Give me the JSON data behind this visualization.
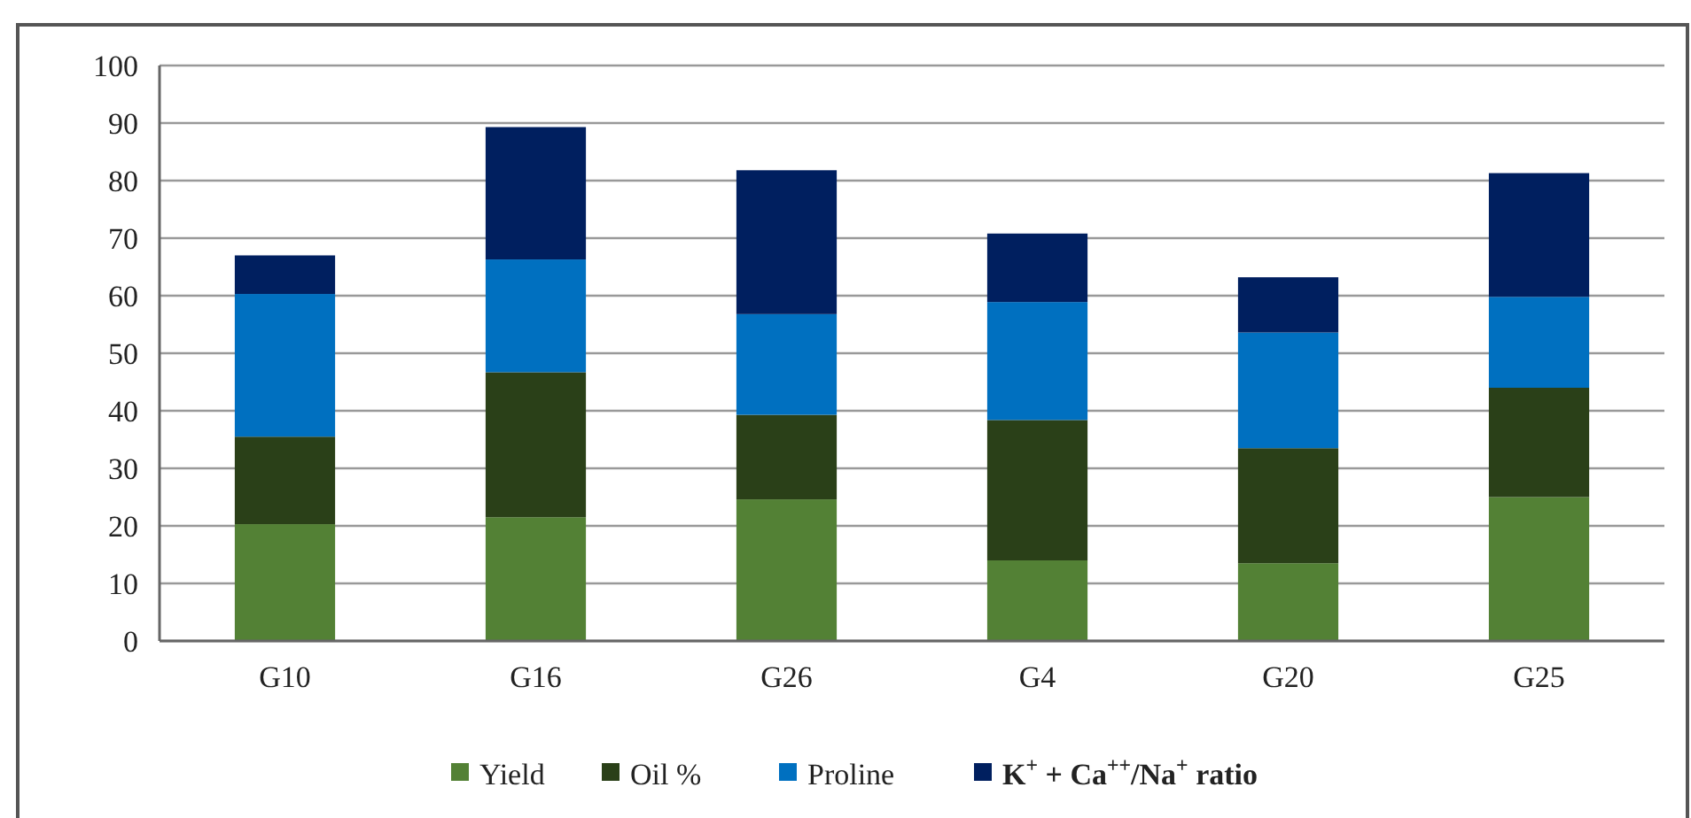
{
  "chart_data": {
    "type": "bar",
    "stacked": true,
    "categories": [
      "G10",
      "G16",
      "G26",
      "G4",
      "G20",
      "G25"
    ],
    "series": [
      {
        "name": "Yield",
        "color": "#538135",
        "values": [
          20.3,
          21.5,
          24.6,
          14.0,
          13.5,
          25.0
        ]
      },
      {
        "name": "Oil %",
        "color": "#2a4018",
        "values": [
          15.2,
          25.2,
          14.7,
          24.4,
          20.0,
          19.0
        ]
      },
      {
        "name": "Proline",
        "color": "#0070c0",
        "values": [
          24.8,
          19.6,
          17.5,
          20.5,
          20.1,
          15.8
        ]
      },
      {
        "name": "K$^{+}$ + Ca$^{++}$/Na$^{+}$ ratio",
        "color": "#001f5f",
        "values": [
          6.7,
          23.0,
          25.0,
          11.9,
          9.6,
          21.5
        ]
      }
    ],
    "ylim": [
      0,
      100
    ],
    "yticks": [
      0,
      10,
      20,
      30,
      40,
      50,
      60,
      70,
      80,
      90,
      100
    ],
    "grid": "y",
    "legend": "bottom"
  }
}
